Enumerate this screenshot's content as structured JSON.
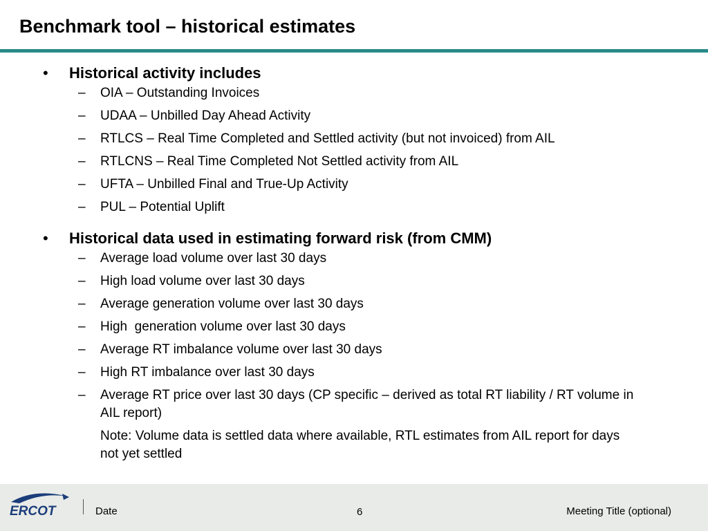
{
  "slide": {
    "title": "Benchmark tool – historical estimates",
    "accent_color": "#2a8a8a",
    "footer_bg": "#e9ebe8"
  },
  "sections": [
    {
      "heading": "Historical activity includes",
      "items": [
        "OIA – Outstanding Invoices",
        "UDAA – Unbilled Day Ahead Activity",
        "RTLCS – Real Time Completed and Settled activity (but not invoiced) from AIL",
        "RTLCNS – Real Time Completed Not Settled activity from AIL",
        "UFTA – Unbilled Final and True-Up Activity",
        "PUL – Potential Uplift"
      ]
    },
    {
      "heading": "Historical data used in estimating forward risk (from CMM)",
      "items": [
        "Average load volume over last 30 days",
        "High load volume over last 30 days",
        "Average generation volume over last 30 days",
        "High  generation volume over last 30 days",
        "Average RT imbalance volume over last 30 days",
        "High RT imbalance over last 30 days",
        "Average RT price over last 30 days (CP specific – derived as total RT liability / RT volume in AIL report)"
      ],
      "note": "Note:  Volume data is settled data where available, RTL estimates from AIL report for days not yet settled"
    }
  ],
  "bullet_symbol": "•",
  "dash_symbol": "–",
  "footer": {
    "logo_text": "ERCOT",
    "logo_icon": "ercot-logo-icon",
    "date": "Date",
    "page_number": "6",
    "meeting_title": "Meeting Title (optional)"
  }
}
